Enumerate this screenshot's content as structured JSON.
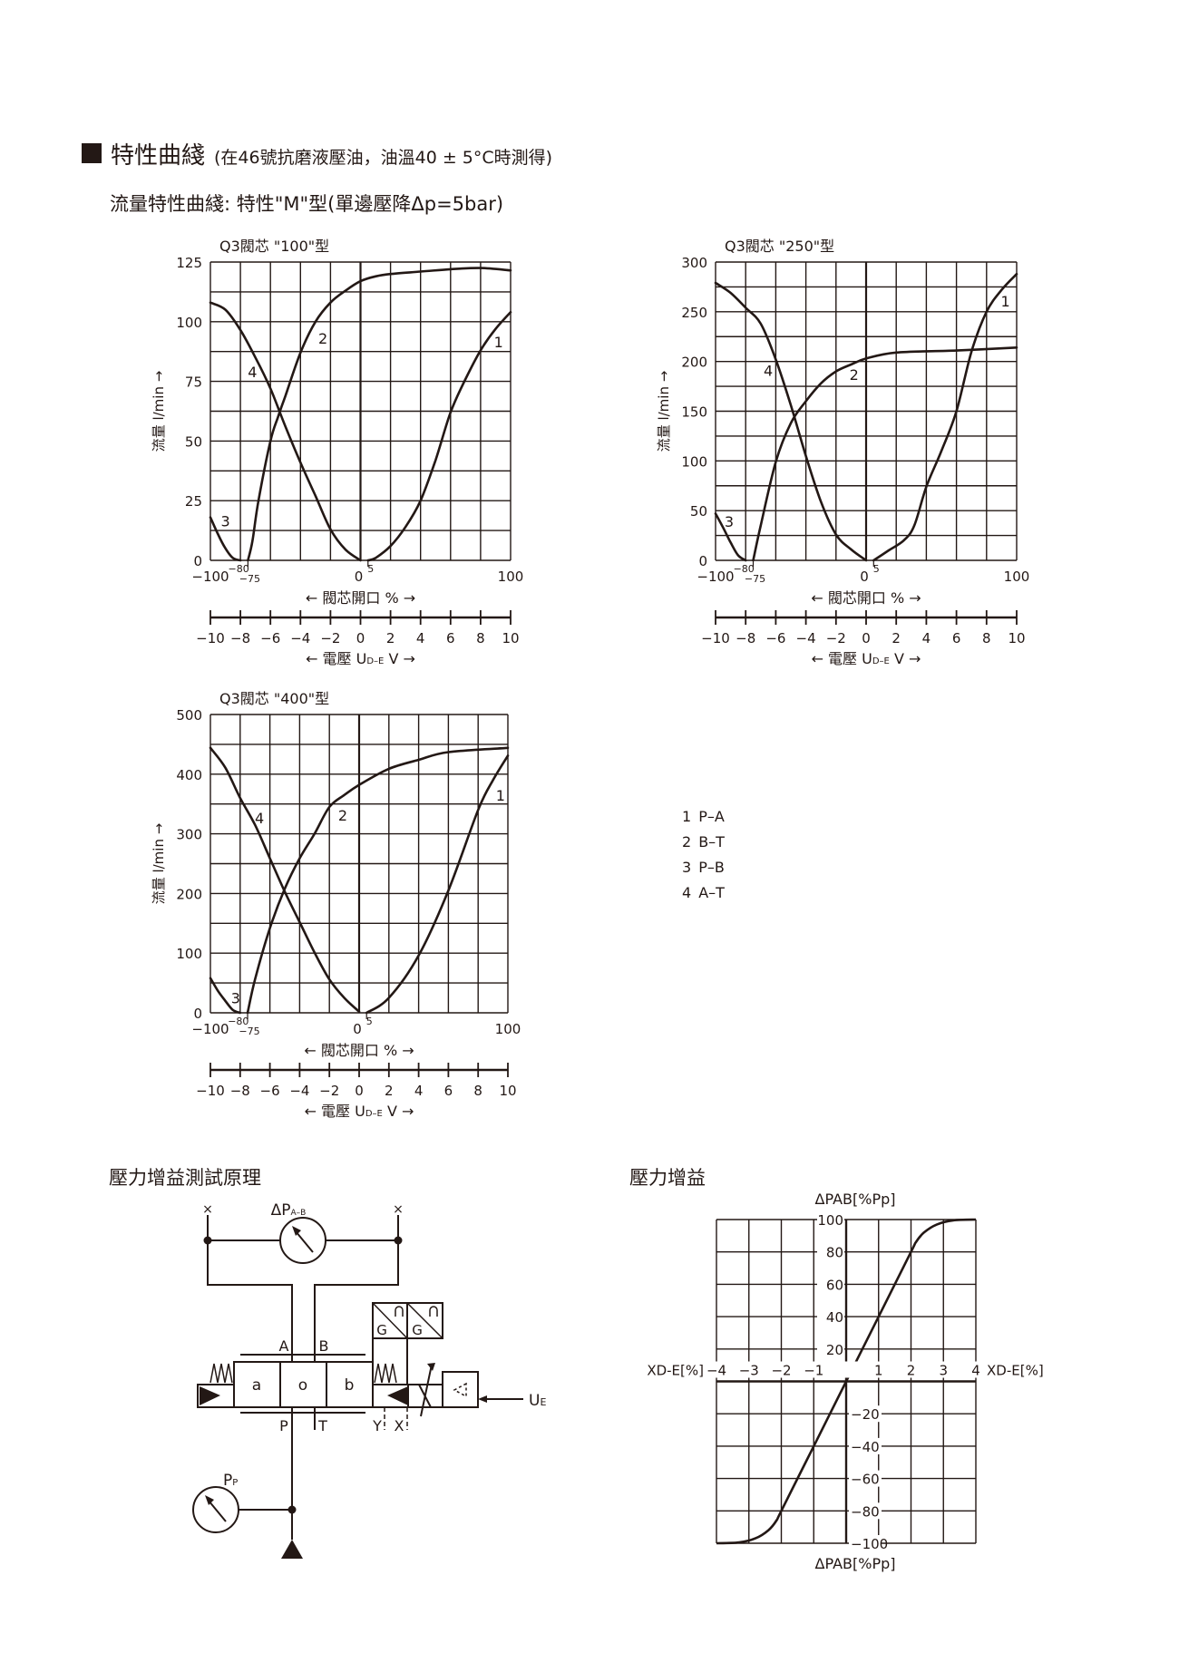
{
  "header": {
    "title": "特性曲綫",
    "conditions": "(在46號抗磨液壓油，油溫40 ± 5°C時測得)",
    "subtitle": "流量特性曲綫: 特性\"M\"型(單邊壓降Δp=5bar)"
  },
  "legend": [
    {
      "num": "1",
      "label": "P–A"
    },
    {
      "num": "2",
      "label": "B–T"
    },
    {
      "num": "3",
      "label": "P–B"
    },
    {
      "num": "4",
      "label": "A–T"
    }
  ],
  "chart_data": [
    {
      "type": "line",
      "title": "Q3閥芯 \"100\"型",
      "ylabel": "流量 l/min →",
      "xlabel": "← 閥芯開口 % →",
      "xlim": [
        -100,
        100
      ],
      "ylim": [
        0,
        125
      ],
      "y_grid_step": 12.5,
      "y_ticks": [
        "0",
        "25",
        "50",
        "75",
        "100",
        "125"
      ],
      "x_ticks": [
        "−100",
        "0",
        "100"
      ],
      "x_marks": [
        "−80",
        "−75",
        "5"
      ],
      "grid": true,
      "secondary_axis": {
        "label_prefix": "← 電壓 U",
        "label_sub": "D–E",
        "label_suffix": " V →",
        "ticks": [
          "−10",
          "−8",
          "−6",
          "−4",
          "−2",
          "0",
          "2",
          "4",
          "6",
          "8",
          "10"
        ]
      },
      "series": [
        {
          "name": "1",
          "points": [
            [
              5,
              0
            ],
            [
              10,
              1
            ],
            [
              20,
              6
            ],
            [
              30,
              14
            ],
            [
              40,
              25
            ],
            [
              50,
              42
            ],
            [
              60,
              62
            ],
            [
              70,
              76
            ],
            [
              80,
              88
            ],
            [
              90,
              97
            ],
            [
              100,
              104
            ]
          ]
        },
        {
          "name": "2",
          "points": [
            [
              -75,
              0
            ],
            [
              -72,
              8
            ],
            [
              -68,
              25
            ],
            [
              -60,
              50
            ],
            [
              -55,
              60
            ],
            [
              -50,
              69
            ],
            [
              -40,
              87
            ],
            [
              -30,
              100
            ],
            [
              -20,
              108
            ],
            [
              -10,
              113
            ],
            [
              0,
              117
            ],
            [
              10,
              119
            ],
            [
              20,
              120
            ],
            [
              40,
              121
            ],
            [
              60,
              122
            ],
            [
              80,
              122.5
            ],
            [
              100,
              121.5
            ]
          ]
        },
        {
          "name": "3",
          "points": [
            [
              -100,
              18
            ],
            [
              -95,
              11
            ],
            [
              -90,
              5
            ],
            [
              -85,
              1
            ],
            [
              -80,
              0
            ]
          ]
        },
        {
          "name": "4",
          "points": [
            [
              -100,
              108
            ],
            [
              -90,
              105
            ],
            [
              -80,
              96.5
            ],
            [
              -70,
              85
            ],
            [
              -60,
              72
            ],
            [
              -50,
              56
            ],
            [
              -40,
              41
            ],
            [
              -30,
              27
            ],
            [
              -20,
              13
            ],
            [
              -10,
              4.5
            ],
            [
              0,
              0
            ]
          ]
        }
      ]
    },
    {
      "type": "line",
      "title": "Q3閥芯 \"250\"型",
      "ylabel": "流量 l/min →",
      "xlabel": "← 閥芯開口 % →",
      "xlim": [
        -100,
        100
      ],
      "ylim": [
        0,
        300
      ],
      "y_grid_step": 25,
      "y_ticks": [
        "0",
        "50",
        "100",
        "150",
        "200",
        "250",
        "300"
      ],
      "x_ticks": [
        "−100",
        "0",
        "100"
      ],
      "x_marks": [
        "−80",
        "−75",
        "5"
      ],
      "grid": true,
      "secondary_axis": {
        "label_prefix": "← 電壓 U",
        "label_sub": "D–E",
        "label_suffix": " V →",
        "ticks": [
          "−10",
          "−8",
          "−6",
          "−4",
          "−2",
          "0",
          "2",
          "4",
          "6",
          "8",
          "10"
        ]
      },
      "series": [
        {
          "name": "1",
          "points": [
            [
              5,
              0
            ],
            [
              15,
              10
            ],
            [
              25,
              20
            ],
            [
              32,
              35
            ],
            [
              40,
              74
            ],
            [
              50,
              110
            ],
            [
              60,
              150
            ],
            [
              70,
              210
            ],
            [
              80,
              250
            ],
            [
              90,
              272
            ],
            [
              100,
              288
            ]
          ]
        },
        {
          "name": "2",
          "points": [
            [
              -75,
              0
            ],
            [
              -70,
              35
            ],
            [
              -60,
              99
            ],
            [
              -50,
              138
            ],
            [
              -40,
              160
            ],
            [
              -30,
              178
            ],
            [
              -20,
              190
            ],
            [
              -10,
              197
            ],
            [
              0,
              203
            ],
            [
              20,
              209
            ],
            [
              60,
              211
            ],
            [
              100,
              214
            ]
          ]
        },
        {
          "name": "3",
          "points": [
            [
              -100,
              47
            ],
            [
              -95,
              33
            ],
            [
              -90,
              18
            ],
            [
              -85,
              5
            ],
            [
              -80,
              0
            ]
          ]
        },
        {
          "name": "4",
          "points": [
            [
              -100,
              279
            ],
            [
              -90,
              269
            ],
            [
              -80,
              254
            ],
            [
              -70,
              238
            ],
            [
              -60,
              202
            ],
            [
              -50,
              156
            ],
            [
              -40,
              105
            ],
            [
              -30,
              59
            ],
            [
              -20,
              26
            ],
            [
              -10,
              11
            ],
            [
              0,
              0
            ]
          ]
        }
      ]
    },
    {
      "type": "line",
      "title": "Q3閥芯 \"400\"型",
      "ylabel": "流量 l/min →",
      "xlabel": "← 閥芯開口 % →",
      "xlim": [
        -100,
        100
      ],
      "ylim": [
        0,
        500
      ],
      "y_grid_step": 50,
      "y_ticks": [
        "0",
        "100",
        "200",
        "300",
        "400",
        "500"
      ],
      "x_ticks": [
        "−100",
        "0",
        "100"
      ],
      "x_marks": [
        "−80",
        "−75",
        "5"
      ],
      "grid": true,
      "secondary_axis": {
        "label_prefix": "← 電壓 U",
        "label_sub": "D–E",
        "label_suffix": " V →",
        "ticks": [
          "−10",
          "−8",
          "−6",
          "−4",
          "−2",
          "0",
          "2",
          "4",
          "6",
          "8",
          "10"
        ]
      },
      "series": [
        {
          "name": "1",
          "points": [
            [
              5,
              0
            ],
            [
              20,
              25
            ],
            [
              40,
              96
            ],
            [
              60,
              205
            ],
            [
              80,
              340
            ],
            [
              90,
              390
            ],
            [
              100,
              431
            ]
          ]
        },
        {
          "name": "2",
          "points": [
            [
              -75,
              0
            ],
            [
              -70,
              56
            ],
            [
              -60,
              142
            ],
            [
              -50,
              208
            ],
            [
              -40,
              259
            ],
            [
              -30,
              300
            ],
            [
              -20,
              345
            ],
            [
              -10,
              365
            ],
            [
              0,
              382
            ],
            [
              20,
              409
            ],
            [
              40,
              424
            ],
            [
              60,
              437
            ],
            [
              100,
              444
            ]
          ]
        },
        {
          "name": "3",
          "points": [
            [
              -100,
              58
            ],
            [
              -95,
              37
            ],
            [
              -90,
              20
            ],
            [
              -85,
              5
            ],
            [
              -80,
              0
            ]
          ]
        },
        {
          "name": "4",
          "points": [
            [
              -100,
              444
            ],
            [
              -90,
              411
            ],
            [
              -80,
              360
            ],
            [
              -70,
              315
            ],
            [
              -60,
              259
            ],
            [
              -50,
              203
            ],
            [
              -40,
              152
            ],
            [
              -30,
              101
            ],
            [
              -20,
              56
            ],
            [
              -10,
              25
            ],
            [
              0,
              2
            ]
          ]
        }
      ]
    },
    {
      "type": "line",
      "title": "壓力增益",
      "ylabel": "ΔPAB[%Pp]",
      "xlabel": "XD-E[%]",
      "xlim": [
        -4,
        4
      ],
      "ylim": [
        -100,
        100
      ],
      "grid": true,
      "x_ticks": [
        "−4",
        "−3",
        "−2",
        "−1",
        "1",
        "2",
        "3",
        "4"
      ],
      "y_ticks_pos": [
        "100",
        "80",
        "60",
        "40",
        "20"
      ],
      "y_ticks_neg": [
        "−20",
        "−40",
        "−60",
        "−80",
        "−100"
      ],
      "series": [
        {
          "points": [
            [
              -4,
              -100
            ],
            [
              -3.3,
              -99.5
            ],
            [
              -2.8,
              -97
            ],
            [
              -2.4,
              -92
            ],
            [
              -2.15,
              -86
            ],
            [
              -2,
              -80
            ],
            [
              -1,
              -40
            ],
            [
              0,
              0
            ],
            [
              1,
              40
            ],
            [
              2,
              80
            ],
            [
              2.15,
              86
            ],
            [
              2.4,
              92
            ],
            [
              2.8,
              97
            ],
            [
              3.3,
              99.5
            ],
            [
              4,
              100
            ]
          ]
        }
      ]
    }
  ],
  "circuit": {
    "heading": "壓力增益測試原理",
    "gauge_ab_label": "ΔP",
    "gauge_ab_sub": "A–B",
    "port_a": "A",
    "port_b": "B",
    "port_p": "P",
    "port_t": "T",
    "port_y": "Y",
    "port_x": "X",
    "pos_a": "a",
    "pos_o": "o",
    "pos_b": "b",
    "sensor_g1": "G",
    "sensor_g2": "G",
    "input_label": "U",
    "input_sub": "E",
    "gauge_p_label": "P",
    "gauge_p_sub": "P",
    "plug_marker": "×"
  },
  "colors": {
    "ink": "#231815",
    "background": "#ffffff"
  }
}
